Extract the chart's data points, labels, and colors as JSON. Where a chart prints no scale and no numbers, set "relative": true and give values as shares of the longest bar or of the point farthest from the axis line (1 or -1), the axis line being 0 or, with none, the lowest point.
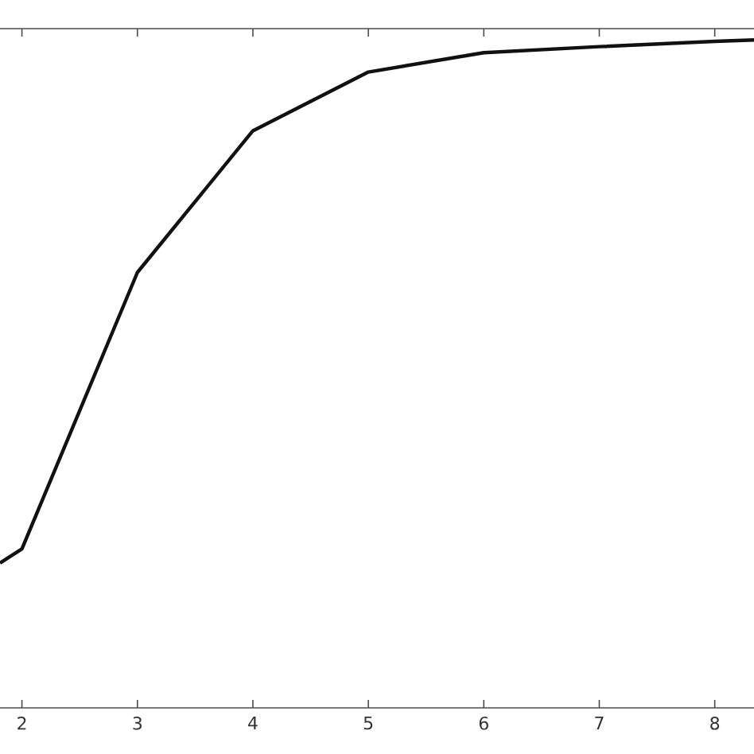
{
  "chart_data": {
    "type": "line",
    "relative": true,
    "color": "#111111",
    "x": [
      1.81,
      2,
      3,
      4,
      5,
      6,
      7,
      8,
      8.34
    ],
    "values": [
      0.217,
      0.238,
      0.652,
      0.864,
      0.952,
      0.981,
      0.99,
      0.998,
      1.0
    ],
    "xlim": [
      1.81,
      8.34
    ],
    "xticks": [
      2,
      3,
      4,
      5,
      6,
      7,
      8
    ]
  }
}
